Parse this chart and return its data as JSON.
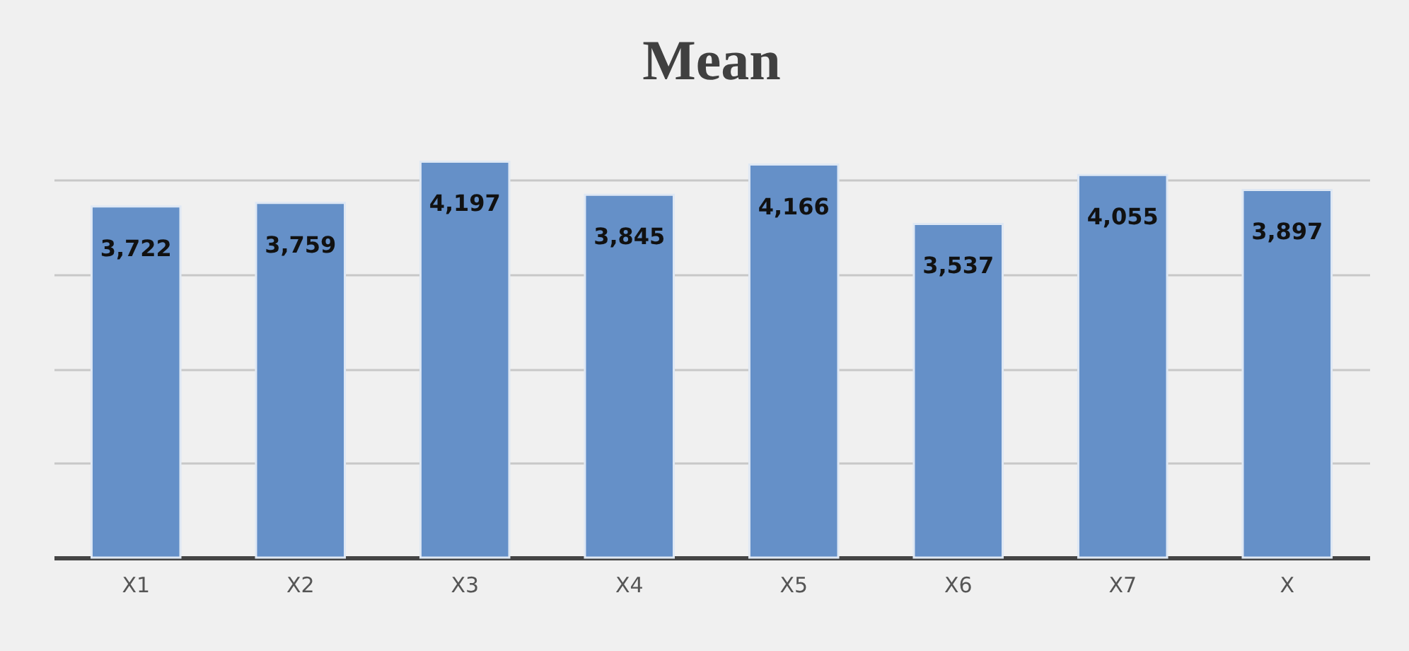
{
  "chart_data": {
    "type": "bar",
    "title": "Mean",
    "categories": [
      "X1",
      "X2",
      "X3",
      "X4",
      "X5",
      "X6",
      "X7",
      "X"
    ],
    "values": [
      3722,
      3759,
      4197,
      3845,
      4166,
      3537,
      4055,
      3897
    ],
    "value_labels": [
      "3,722",
      "3,759",
      "4,197",
      "3,845",
      "4,166",
      "3,537",
      "4,055",
      "3,897"
    ],
    "color": "#6590c8",
    "grid": "y",
    "tick_labels": "x"
  }
}
